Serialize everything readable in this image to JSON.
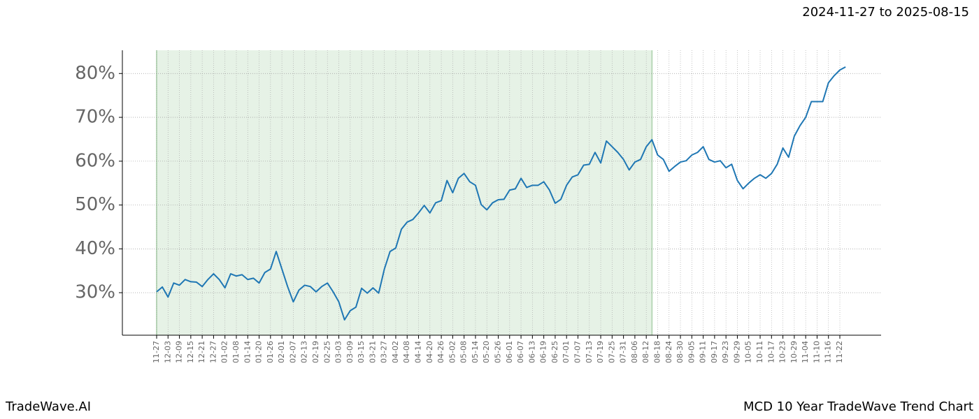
{
  "chart_data": {
    "type": "line",
    "title": "MCD 10 Year TradeWave Trend Chart",
    "subtitle": "2024-11-27 to 2025-08-15",
    "brand": "TradeWave.AI",
    "categories": [
      "11-27",
      null,
      "12-03",
      null,
      "12-09",
      null,
      "12-15",
      null,
      "12-21",
      null,
      "12-27",
      null,
      "01-02",
      null,
      "01-08",
      null,
      "01-14",
      null,
      "01-20",
      null,
      "01-26",
      null,
      "02-01",
      null,
      "02-07",
      null,
      "02-13",
      null,
      "02-19",
      null,
      "02-25",
      null,
      "03-03",
      null,
      "03-09",
      null,
      "03-15",
      null,
      "03-21",
      null,
      "03-27",
      null,
      "04-02",
      null,
      "04-08",
      null,
      "04-14",
      null,
      "04-20",
      null,
      "04-26",
      null,
      "05-02",
      null,
      "05-08",
      null,
      "05-14",
      null,
      "05-20",
      null,
      "05-26",
      null,
      "06-01",
      null,
      "06-07",
      null,
      "06-13",
      null,
      "06-19",
      null,
      "06-25",
      null,
      "07-01",
      null,
      "07-07",
      null,
      "07-13",
      null,
      "07-19",
      null,
      "07-25",
      null,
      "07-31",
      null,
      "08-06",
      null,
      "08-12",
      null,
      "08-18",
      null,
      "08-24",
      null,
      "08-30",
      null,
      "09-05",
      null,
      "09-11",
      null,
      "09-17",
      null,
      "09-23",
      null,
      "09-29",
      null,
      "10-05",
      null,
      "10-11",
      null,
      "10-17",
      null,
      "10-23",
      null,
      "10-29",
      null,
      "11-04",
      null,
      "11-10",
      null,
      "11-16",
      null,
      "11-22",
      null
    ],
    "series": [
      {
        "color": "#1f77b4",
        "values": [
          30.2,
          31.3,
          29.0,
          32.2,
          31.7,
          33.0,
          32.5,
          32.4,
          31.4,
          33.0,
          34.3,
          33.0,
          31.1,
          34.3,
          33.8,
          34.1,
          33.0,
          33.3,
          32.2,
          34.6,
          35.4,
          39.4,
          35.4,
          31.4,
          27.9,
          30.6,
          31.7,
          31.4,
          30.2,
          31.4,
          32.2,
          30.2,
          27.9,
          23.8,
          25.9,
          26.7,
          31.0,
          29.9,
          31.1,
          29.9,
          35.4,
          39.4,
          40.2,
          44.5,
          46.1,
          46.7,
          48.2,
          49.9,
          48.2,
          50.5,
          51.0,
          55.6,
          52.8,
          56.1,
          57.2,
          55.3,
          54.5,
          50.1,
          48.9,
          50.5,
          51.2,
          51.3,
          53.4,
          53.7,
          56.1,
          54.0,
          54.5,
          54.5,
          55.3,
          53.4,
          50.4,
          51.3,
          54.5,
          56.4,
          56.9,
          59.1,
          59.3,
          62.0,
          59.6,
          64.6,
          63.3,
          62.0,
          60.4,
          58.0,
          59.8,
          60.4,
          63.3,
          64.9,
          61.4,
          60.4,
          57.7,
          58.8,
          59.8,
          60.1,
          61.4,
          62.0,
          63.3,
          60.4,
          59.8,
          60.1,
          58.5,
          59.3,
          55.6,
          53.7,
          55.0,
          56.1,
          56.9,
          56.1,
          57.2,
          59.3,
          63.0,
          60.9,
          65.7,
          68.1,
          70.0,
          73.6,
          73.6,
          73.6,
          77.9,
          79.5,
          80.8,
          81.5
        ]
      }
    ],
    "ylim": [
      20.3,
      85.3
    ],
    "yticks": [
      {
        "value": 30,
        "label": "30%"
      },
      {
        "value": 40,
        "label": "40%"
      },
      {
        "value": 50,
        "label": "50%"
      },
      {
        "value": 60,
        "label": "60%"
      },
      {
        "value": 70,
        "label": "70%"
      },
      {
        "value": 80,
        "label": "80%"
      }
    ],
    "grid": true,
    "shade": {
      "from": 0,
      "to": 87,
      "color": "#e6f2e6"
    }
  }
}
